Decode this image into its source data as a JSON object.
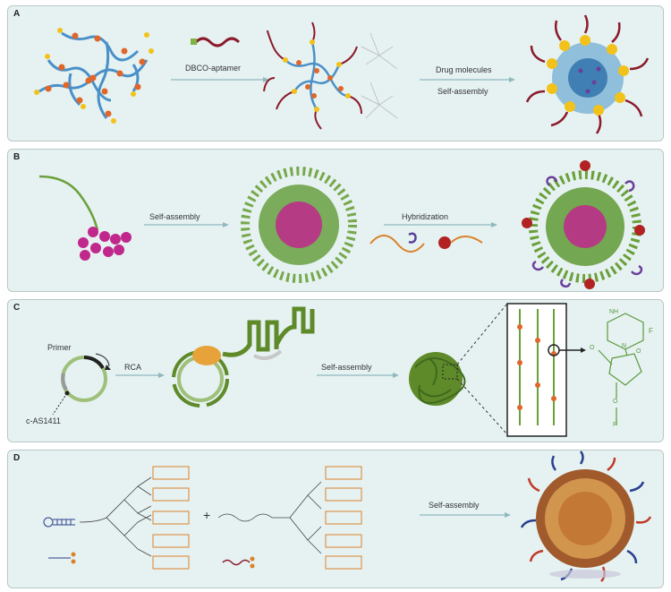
{
  "panels": {
    "a": {
      "label": "A",
      "step1": "DBCO-aptamer",
      "step2_line1": "Drug molecules",
      "step2_line2": "Self-assembly"
    },
    "b": {
      "label": "B",
      "step1": "Self-assembly",
      "step2": "Hybridization"
    },
    "c": {
      "label": "C",
      "primer": "Primer",
      "template": "c-AS1411",
      "rca": "RCA",
      "step2": "Self-assembly",
      "chem_f": "F",
      "chem_nh": "NH",
      "chem_n": "N",
      "chem_o1": "O",
      "chem_o2": "O",
      "chem_o3": "O",
      "chem_p": "P"
    },
    "d": {
      "label": "D",
      "plus": "+",
      "step": "Self-assembly"
    }
  },
  "colors": {
    "panel_bg": "#e6f2f2",
    "arrow": "#8fb9bf",
    "polymer_blue": "#4a90c8",
    "aptamer_red": "#8b1a2b",
    "yellow": "#f2c21b",
    "orange_dot": "#e0662a",
    "green": "#6aa03a",
    "magenta": "#c0288c",
    "drug_orange": "#d9822b",
    "nav_blue": "#2a3f8f"
  }
}
